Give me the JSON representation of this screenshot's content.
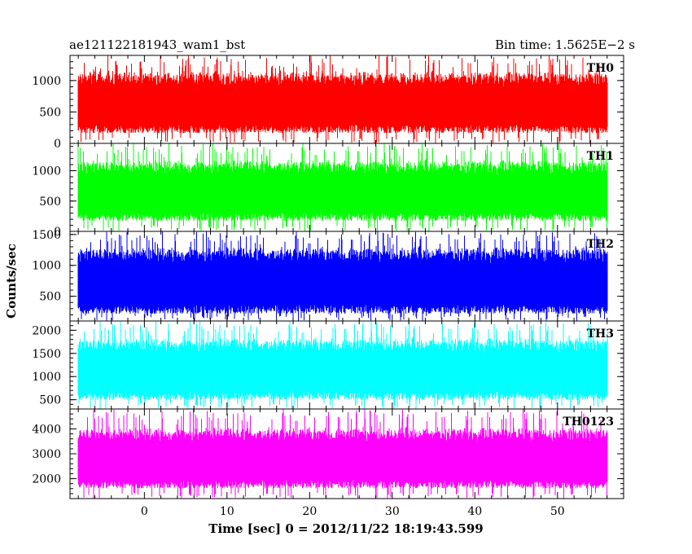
{
  "header": {
    "title_left": "ae121122181943_wam1_bst",
    "title_right": "Bin time: 1.5625E−2 s"
  },
  "chart_data": {
    "type": "line",
    "xlabel": "Time [sec] 0 = 2012/11/22 18:19:43.599",
    "ylabel": "Counts/sec",
    "xlim": [
      -9,
      58
    ],
    "x_ticks": [
      0,
      10,
      20,
      30,
      40,
      50
    ],
    "x_data_range": [
      -8,
      56
    ],
    "bin_time": 0.015625,
    "panels": [
      {
        "name": "TH0",
        "color": "#ff0000",
        "ylim": [
          0,
          1400
        ],
        "y_ticks": [
          0,
          500,
          1000
        ],
        "mean": 620,
        "noise": 380,
        "max_spike": 1400
      },
      {
        "name": "TH1",
        "color": "#00ff00",
        "ylim": [
          0,
          1450
        ],
        "y_ticks": [
          0,
          500,
          1000
        ],
        "mean": 640,
        "noise": 390,
        "max_spike": 1450
      },
      {
        "name": "TH2",
        "color": "#0000ff",
        "ylim": [
          100,
          1550
        ],
        "y_ticks": [
          500,
          1000,
          1500
        ],
        "mean": 720,
        "noise": 420,
        "max_spike": 1550
      },
      {
        "name": "TH3",
        "color": "#00ffff",
        "ylim": [
          300,
          2200
        ],
        "y_ticks": [
          500,
          1000,
          1500,
          2000
        ],
        "mean": 1120,
        "noise": 520,
        "max_spike": 2200
      },
      {
        "name": "TH0123",
        "color": "#ff00ff",
        "ylim": [
          1200,
          4800
        ],
        "y_ticks": [
          2000,
          3000,
          4000
        ],
        "mean": 2750,
        "noise": 950,
        "max_spike": 4800
      }
    ]
  }
}
